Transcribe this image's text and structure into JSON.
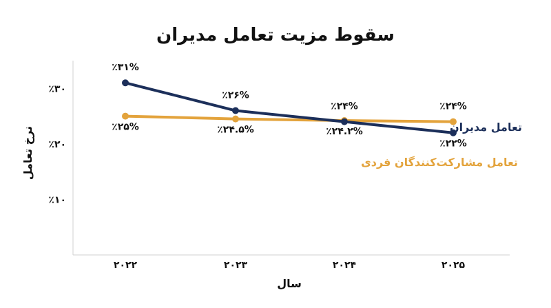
{
  "chart_data": {
    "type": "line",
    "title": "سقوط مزیت تعامل مدیران",
    "xlabel": "سال",
    "ylabel": "نرخ تعامل",
    "categories": [
      "۲۰۲۲",
      "۲۰۲۳",
      "۲۰۲۴",
      "۲۰۲۵"
    ],
    "x": [
      2022,
      2023,
      2024,
      2025
    ],
    "ylim": [
      0,
      35
    ],
    "yticks": [
      {
        "value": 10,
        "label": "٪۱۰"
      },
      {
        "value": 20,
        "label": "٪۲۰"
      },
      {
        "value": 30,
        "label": "٪۳۰"
      }
    ],
    "grid": false,
    "series": [
      {
        "name": "تعامل مدیران",
        "color": "#1c2f5a",
        "values": [
          31,
          26,
          24,
          22
        ],
        "labels": [
          "٪۳۱%",
          "٪۲۶%",
          "٪۲۴%",
          "٪۲۲%"
        ]
      },
      {
        "name": "تعامل مشارکت‌کنندگان فردی",
        "color": "#e3a33c",
        "values": [
          25,
          24.5,
          24.2,
          24
        ],
        "labels": [
          "٪۲۵%",
          "٪۲۴.۵%",
          "٪۲۴.۲%",
          "٪۲۴%"
        ]
      }
    ]
  }
}
